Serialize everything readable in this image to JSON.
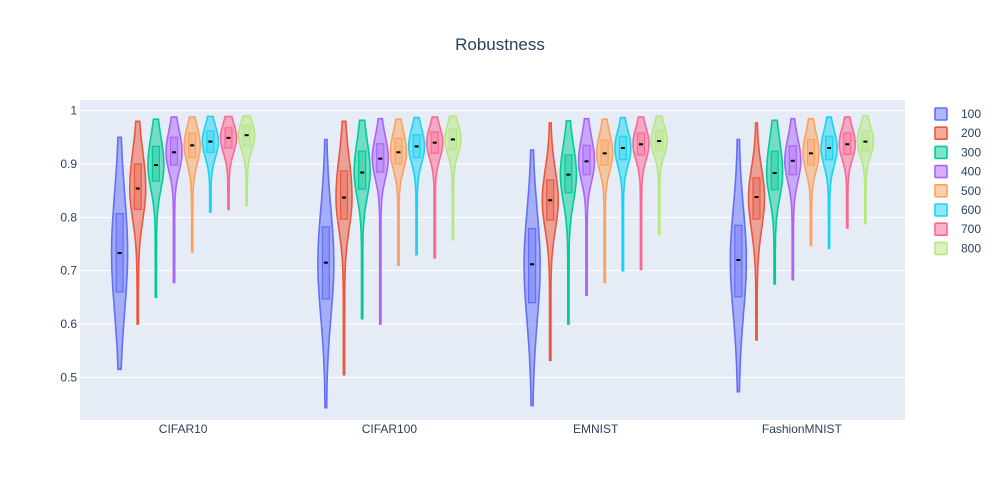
{
  "chart_data": {
    "type": "violin",
    "title": "Robustness",
    "xlabel": "",
    "ylabel": "",
    "categories": [
      "CIFAR10",
      "CIFAR100",
      "EMNIST",
      "FashionMNIST"
    ],
    "yticks": [
      "0.5",
      "0.6",
      "0.7",
      "0.8",
      "0.9",
      "1"
    ],
    "ylim": [
      0.42,
      1.02
    ],
    "grid": true,
    "legend_position": "right",
    "series": [
      {
        "name": "100",
        "color": "#636efa",
        "stats": [
          {
            "min": 0.515,
            "q1": 0.66,
            "median": 0.733,
            "q3": 0.807,
            "max": 0.95
          },
          {
            "min": 0.443,
            "q1": 0.647,
            "median": 0.715,
            "q3": 0.782,
            "max": 0.946
          },
          {
            "min": 0.447,
            "q1": 0.64,
            "median": 0.712,
            "q3": 0.779,
            "max": 0.926
          },
          {
            "min": 0.473,
            "q1": 0.651,
            "median": 0.72,
            "q3": 0.785,
            "max": 0.946
          }
        ]
      },
      {
        "name": "200",
        "color": "#ef553b",
        "stats": [
          {
            "min": 0.6,
            "q1": 0.815,
            "median": 0.854,
            "q3": 0.9,
            "max": 0.98
          },
          {
            "min": 0.505,
            "q1": 0.797,
            "median": 0.837,
            "q3": 0.887,
            "max": 0.98
          },
          {
            "min": 0.532,
            "q1": 0.795,
            "median": 0.832,
            "q3": 0.87,
            "max": 0.977
          },
          {
            "min": 0.57,
            "q1": 0.797,
            "median": 0.838,
            "q3": 0.874,
            "max": 0.977
          }
        ]
      },
      {
        "name": "300",
        "color": "#00cc96",
        "stats": [
          {
            "min": 0.65,
            "q1": 0.868,
            "median": 0.898,
            "q3": 0.933,
            "max": 0.984
          },
          {
            "min": 0.61,
            "q1": 0.853,
            "median": 0.884,
            "q3": 0.924,
            "max": 0.982
          },
          {
            "min": 0.6,
            "q1": 0.846,
            "median": 0.88,
            "q3": 0.917,
            "max": 0.981
          },
          {
            "min": 0.675,
            "q1": 0.852,
            "median": 0.883,
            "q3": 0.924,
            "max": 0.982
          }
        ]
      },
      {
        "name": "400",
        "color": "#ab63fa",
        "stats": [
          {
            "min": 0.678,
            "q1": 0.898,
            "median": 0.922,
            "q3": 0.95,
            "max": 0.988
          },
          {
            "min": 0.6,
            "q1": 0.885,
            "median": 0.91,
            "q3": 0.938,
            "max": 0.985
          },
          {
            "min": 0.654,
            "q1": 0.88,
            "median": 0.905,
            "q3": 0.935,
            "max": 0.985
          },
          {
            "min": 0.683,
            "q1": 0.88,
            "median": 0.906,
            "q3": 0.934,
            "max": 0.985
          }
        ]
      },
      {
        "name": "500",
        "color": "#ffa15a",
        "stats": [
          {
            "min": 0.735,
            "q1": 0.912,
            "median": 0.935,
            "q3": 0.958,
            "max": 0.988
          },
          {
            "min": 0.71,
            "q1": 0.9,
            "median": 0.922,
            "q3": 0.948,
            "max": 0.984
          },
          {
            "min": 0.678,
            "q1": 0.898,
            "median": 0.92,
            "q3": 0.945,
            "max": 0.984
          },
          {
            "min": 0.747,
            "q1": 0.898,
            "median": 0.92,
            "q3": 0.946,
            "max": 0.985
          }
        ]
      },
      {
        "name": "600",
        "color": "#19d3f3",
        "stats": [
          {
            "min": 0.81,
            "q1": 0.922,
            "median": 0.942,
            "q3": 0.962,
            "max": 0.989
          },
          {
            "min": 0.73,
            "q1": 0.912,
            "median": 0.933,
            "q3": 0.955,
            "max": 0.987
          },
          {
            "min": 0.7,
            "q1": 0.908,
            "median": 0.93,
            "q3": 0.952,
            "max": 0.987
          },
          {
            "min": 0.742,
            "q1": 0.908,
            "median": 0.93,
            "q3": 0.952,
            "max": 0.988
          }
        ]
      },
      {
        "name": "700",
        "color": "#ff6692",
        "stats": [
          {
            "min": 0.815,
            "q1": 0.93,
            "median": 0.949,
            "q3": 0.968,
            "max": 0.989
          },
          {
            "min": 0.724,
            "q1": 0.92,
            "median": 0.94,
            "q3": 0.96,
            "max": 0.988
          },
          {
            "min": 0.702,
            "q1": 0.917,
            "median": 0.937,
            "q3": 0.958,
            "max": 0.988
          },
          {
            "min": 0.78,
            "q1": 0.918,
            "median": 0.937,
            "q3": 0.958,
            "max": 0.988
          }
        ]
      },
      {
        "name": "800",
        "color": "#b6e880",
        "stats": [
          {
            "min": 0.822,
            "q1": 0.935,
            "median": 0.954,
            "q3": 0.972,
            "max": 0.99
          },
          {
            "min": 0.758,
            "q1": 0.927,
            "median": 0.946,
            "q3": 0.966,
            "max": 0.99
          },
          {
            "min": 0.768,
            "q1": 0.925,
            "median": 0.943,
            "q3": 0.963,
            "max": 0.99
          },
          {
            "min": 0.788,
            "q1": 0.924,
            "median": 0.942,
            "q3": 0.962,
            "max": 0.99
          }
        ]
      }
    ]
  }
}
